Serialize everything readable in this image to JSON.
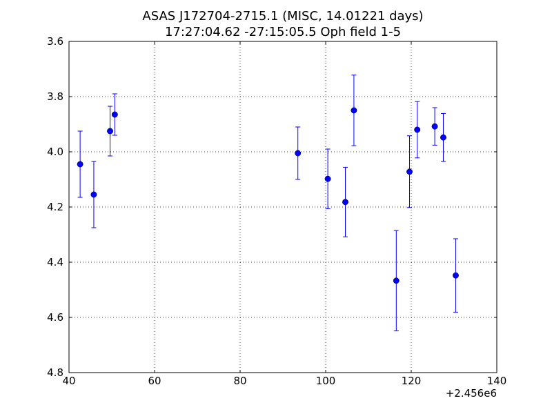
{
  "chart_data": {
    "type": "scatter",
    "title_line1": "ASAS J172704-2715.1 (MISC, 14.01221 days)",
    "title_line2": "17:27:04.62 -27:15:05.5 Oph field 1-5",
    "xlabel": "",
    "ylabel": "",
    "x_offset_label": "+2.456e6",
    "xlim": [
      40,
      140
    ],
    "ylim": [
      4.8,
      3.6
    ],
    "y_inverted": true,
    "grid": true,
    "marker_color": "#0000ff",
    "x_ticks": [
      40,
      60,
      80,
      100,
      120,
      140
    ],
    "x_tick_labels": [
      "40",
      "60",
      "80",
      "100",
      "120",
      "140"
    ],
    "y_ticks": [
      3.6,
      3.8,
      4.0,
      4.2,
      4.4,
      4.6,
      4.8
    ],
    "y_tick_labels": [
      "3.6",
      "3.8",
      "4.0",
      "4.2",
      "4.4",
      "4.6",
      "4.8"
    ],
    "points": [
      {
        "x": 42.6,
        "y": 4.045,
        "err": 0.12
      },
      {
        "x": 45.8,
        "y": 4.155,
        "err": 0.12
      },
      {
        "x": 49.6,
        "y": 3.925,
        "err": 0.09
      },
      {
        "x": 50.7,
        "y": 3.865,
        "err": 0.075
      },
      {
        "x": 93.5,
        "y": 4.005,
        "err": 0.095
      },
      {
        "x": 100.5,
        "y": 4.098,
        "err": 0.108
      },
      {
        "x": 104.6,
        "y": 4.182,
        "err": 0.126
      },
      {
        "x": 106.6,
        "y": 3.85,
        "err": 0.128
      },
      {
        "x": 116.5,
        "y": 4.467,
        "err": 0.182
      },
      {
        "x": 119.6,
        "y": 4.072,
        "err": 0.13
      },
      {
        "x": 121.4,
        "y": 3.92,
        "err": 0.102
      },
      {
        "x": 125.5,
        "y": 3.908,
        "err": 0.068
      },
      {
        "x": 127.5,
        "y": 3.948,
        "err": 0.087
      },
      {
        "x": 130.4,
        "y": 4.448,
        "err": 0.133
      }
    ]
  }
}
